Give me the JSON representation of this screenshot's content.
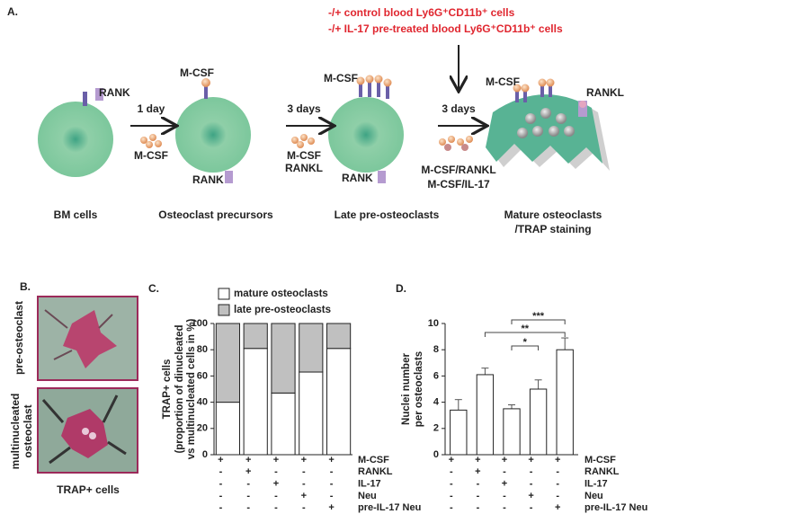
{
  "panel_a": {
    "label": "A.",
    "treatments": [
      "-/+ control blood Ly6G⁺CD11b⁺ cells",
      "-/+ IL-17 pre-treated blood Ly6G⁺CD11b⁺ cells"
    ],
    "steps": [
      [
        "1 day",
        "M-CSF"
      ],
      [
        "3 days",
        "M-CSF",
        "RANKL"
      ],
      [
        "3 days",
        "M-CSF/RANKL",
        "M-CSF/IL-17"
      ]
    ],
    "receptor_labels": [
      "RANK",
      "M-CSF",
      "RANK",
      "M-CSF",
      "RANK",
      "M-CSF",
      "RANKL"
    ],
    "stages": [
      [
        "BM cells"
      ],
      [
        "Osteoclast precursors"
      ],
      [
        "Late pre-osteoclasts"
      ],
      [
        "Mature osteoclasts",
        "/TRAP staining"
      ]
    ]
  },
  "panel_b": {
    "label": "B.",
    "images": [
      [
        "pre-osteoclast"
      ],
      [
        "multinucleated",
        "osteoclast"
      ]
    ],
    "caption": "TRAP+ cells"
  },
  "chart_data": [
    {
      "label": "C.",
      "type": "stacked_bar",
      "ylabel": [
        "TRAP+ cells",
        "(proportion of dinucleated",
        "vs multinucleated cells in %)"
      ],
      "categories": [
        null,
        null,
        null,
        null,
        null
      ],
      "series": [
        {
          "name": "mature osteoclasts",
          "color": "#ffffff",
          "values": [
            40,
            81,
            47,
            63,
            81
          ]
        },
        {
          "name": "late pre-osteoclasts",
          "color": "#c0c0c0",
          "values": [
            60,
            19,
            53,
            37,
            19
          ]
        }
      ],
      "ylim": [
        0,
        100
      ],
      "yticks": [
        0,
        20,
        40,
        60,
        80,
        100
      ],
      "conditions": {
        "names": [
          "M-CSF",
          "RANKL",
          "IL-17",
          "Neu",
          "pre-IL-17 Neu"
        ],
        "signs": [
          [
            "+",
            "+",
            "+",
            "+",
            "+"
          ],
          [
            "-",
            "+",
            "-",
            "-",
            "-"
          ],
          [
            "-",
            "-",
            "+",
            "-",
            "-"
          ],
          [
            "-",
            "-",
            "-",
            "+",
            "-"
          ],
          [
            "-",
            "-",
            "-",
            "-",
            "+"
          ]
        ]
      }
    },
    {
      "label": "D.",
      "type": "bar",
      "ylabel": [
        "Nuclei number",
        "per osteoclasts"
      ],
      "categories": [
        null,
        null,
        null,
        null,
        null
      ],
      "values": [
        3.4,
        6.1,
        3.5,
        5.0,
        8.0
      ],
      "errors": [
        0.8,
        0.5,
        0.3,
        0.7,
        0.9
      ],
      "color": "#ffffff",
      "ylim": [
        0,
        10
      ],
      "yticks": [
        0,
        2,
        4,
        6,
        8,
        10
      ],
      "significance": [
        "***",
        "**",
        "*"
      ],
      "conditions": {
        "names": [
          "M-CSF",
          "RANKL",
          "IL-17",
          "Neu",
          "pre-IL-17 Neu"
        ],
        "signs": [
          [
            "+",
            "+",
            "+",
            "+",
            "+"
          ],
          [
            "-",
            "+",
            "-",
            "-",
            "-"
          ],
          [
            "-",
            "-",
            "+",
            "-",
            "-"
          ],
          [
            "-",
            "-",
            "-",
            "+",
            "-"
          ],
          [
            "-",
            "-",
            "-",
            "-",
            "+"
          ]
        ]
      }
    }
  ]
}
